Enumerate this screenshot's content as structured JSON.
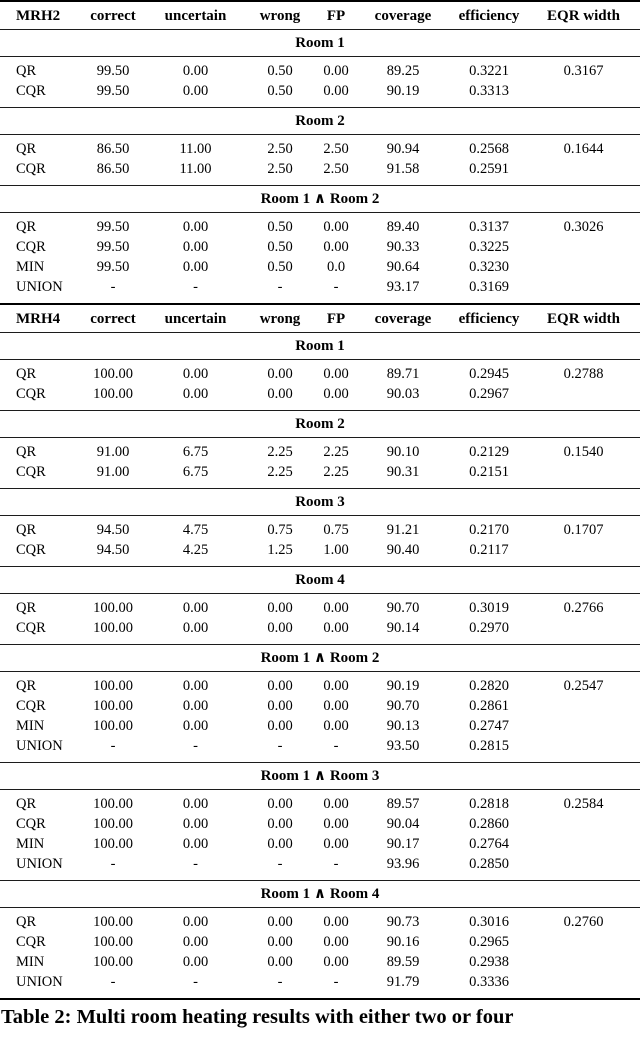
{
  "caption": "Table 2: Multi room heating results with either two or four",
  "columns": [
    "correct",
    "uncertain",
    "wrong",
    "FP",
    "coverage",
    "efficiency",
    "EQR width"
  ],
  "blocks": [
    {
      "id": "mrh2",
      "label": "MRH2",
      "sections": [
        {
          "title": "Room 1",
          "rows": [
            {
              "label": "QR",
              "values": [
                "99.50",
                "0.00",
                "0.50",
                "0.00",
                "89.25",
                "0.3221",
                "0.3167"
              ]
            },
            {
              "label": "CQR",
              "values": [
                "99.50",
                "0.00",
                "0.50",
                "0.00",
                "90.19",
                "0.3313",
                ""
              ]
            }
          ]
        },
        {
          "title": "Room 2",
          "rows": [
            {
              "label": "QR",
              "values": [
                "86.50",
                "11.00",
                "2.50",
                "2.50",
                "90.94",
                "0.2568",
                "0.1644"
              ]
            },
            {
              "label": "CQR",
              "values": [
                "86.50",
                "11.00",
                "2.50",
                "2.50",
                "91.58",
                "0.2591",
                ""
              ]
            }
          ]
        },
        {
          "title": "Room 1 ∧ Room 2",
          "rows": [
            {
              "label": "QR",
              "values": [
                "99.50",
                "0.00",
                "0.50",
                "0.00",
                "89.40",
                "0.3137",
                "0.3026"
              ]
            },
            {
              "label": "CQR",
              "values": [
                "99.50",
                "0.00",
                "0.50",
                "0.00",
                "90.33",
                "0.3225",
                ""
              ]
            },
            {
              "label": "MIN",
              "values": [
                "99.50",
                "0.00",
                "0.50",
                "0.0",
                "90.64",
                "0.3230",
                ""
              ]
            },
            {
              "label": "UNION",
              "values": [
                "-",
                "-",
                "-",
                "-",
                "93.17",
                "0.3169",
                ""
              ]
            }
          ]
        }
      ]
    },
    {
      "id": "mrh4",
      "label": "MRH4",
      "sections": [
        {
          "title": "Room 1",
          "rows": [
            {
              "label": "QR",
              "values": [
                "100.00",
                "0.00",
                "0.00",
                "0.00",
                "89.71",
                "0.2945",
                "0.2788"
              ]
            },
            {
              "label": "CQR",
              "values": [
                "100.00",
                "0.00",
                "0.00",
                "0.00",
                "90.03",
                "0.2967",
                ""
              ]
            }
          ]
        },
        {
          "title": "Room 2",
          "rows": [
            {
              "label": "QR",
              "values": [
                "91.00",
                "6.75",
                "2.25",
                "2.25",
                "90.10",
                "0.2129",
                "0.1540"
              ]
            },
            {
              "label": "CQR",
              "values": [
                "91.00",
                "6.75",
                "2.25",
                "2.25",
                "90.31",
                "0.2151",
                ""
              ]
            }
          ]
        },
        {
          "title": "Room 3",
          "rows": [
            {
              "label": "QR",
              "values": [
                "94.50",
                "4.75",
                "0.75",
                "0.75",
                "91.21",
                "0.2170",
                "0.1707"
              ]
            },
            {
              "label": "CQR",
              "values": [
                "94.50",
                "4.25",
                "1.25",
                "1.00",
                "90.40",
                "0.2117",
                ""
              ]
            }
          ]
        },
        {
          "title": "Room 4",
          "rows": [
            {
              "label": "QR",
              "values": [
                "100.00",
                "0.00",
                "0.00",
                "0.00",
                "90.70",
                "0.3019",
                "0.2766"
              ]
            },
            {
              "label": "CQR",
              "values": [
                "100.00",
                "0.00",
                "0.00",
                "0.00",
                "90.14",
                "0.2970",
                ""
              ]
            }
          ]
        },
        {
          "title": "Room 1 ∧ Room 2",
          "rows": [
            {
              "label": "QR",
              "values": [
                "100.00",
                "0.00",
                "0.00",
                "0.00",
                "90.19",
                "0.2820",
                "0.2547"
              ]
            },
            {
              "label": "CQR",
              "values": [
                "100.00",
                "0.00",
                "0.00",
                "0.00",
                "90.70",
                "0.2861",
                ""
              ]
            },
            {
              "label": "MIN",
              "values": [
                "100.00",
                "0.00",
                "0.00",
                "0.00",
                "90.13",
                "0.2747",
                ""
              ]
            },
            {
              "label": "UNION",
              "values": [
                "-",
                "-",
                "-",
                "-",
                "93.50",
                "0.2815",
                ""
              ]
            }
          ]
        },
        {
          "title": "Room 1 ∧ Room 3",
          "rows": [
            {
              "label": "QR",
              "values": [
                "100.00",
                "0.00",
                "0.00",
                "0.00",
                "89.57",
                "0.2818",
                "0.2584"
              ]
            },
            {
              "label": "CQR",
              "values": [
                "100.00",
                "0.00",
                "0.00",
                "0.00",
                "90.04",
                "0.2860",
                ""
              ]
            },
            {
              "label": "MIN",
              "values": [
                "100.00",
                "0.00",
                "0.00",
                "0.00",
                "90.17",
                "0.2764",
                ""
              ]
            },
            {
              "label": "UNION",
              "values": [
                "-",
                "-",
                "-",
                "-",
                "93.96",
                "0.2850",
                ""
              ]
            }
          ]
        },
        {
          "title": "Room 1 ∧ Room 4",
          "rows": [
            {
              "label": "QR",
              "values": [
                "100.00",
                "0.00",
                "0.00",
                "0.00",
                "90.73",
                "0.3016",
                "0.2760"
              ]
            },
            {
              "label": "CQR",
              "values": [
                "100.00",
                "0.00",
                "0.00",
                "0.00",
                "90.16",
                "0.2965",
                ""
              ]
            },
            {
              "label": "MIN",
              "values": [
                "100.00",
                "0.00",
                "0.00",
                "0.00",
                "89.59",
                "0.2938",
                ""
              ]
            },
            {
              "label": "UNION",
              "values": [
                "-",
                "-",
                "-",
                "-",
                "91.79",
                "0.3336",
                ""
              ]
            }
          ]
        }
      ]
    }
  ]
}
